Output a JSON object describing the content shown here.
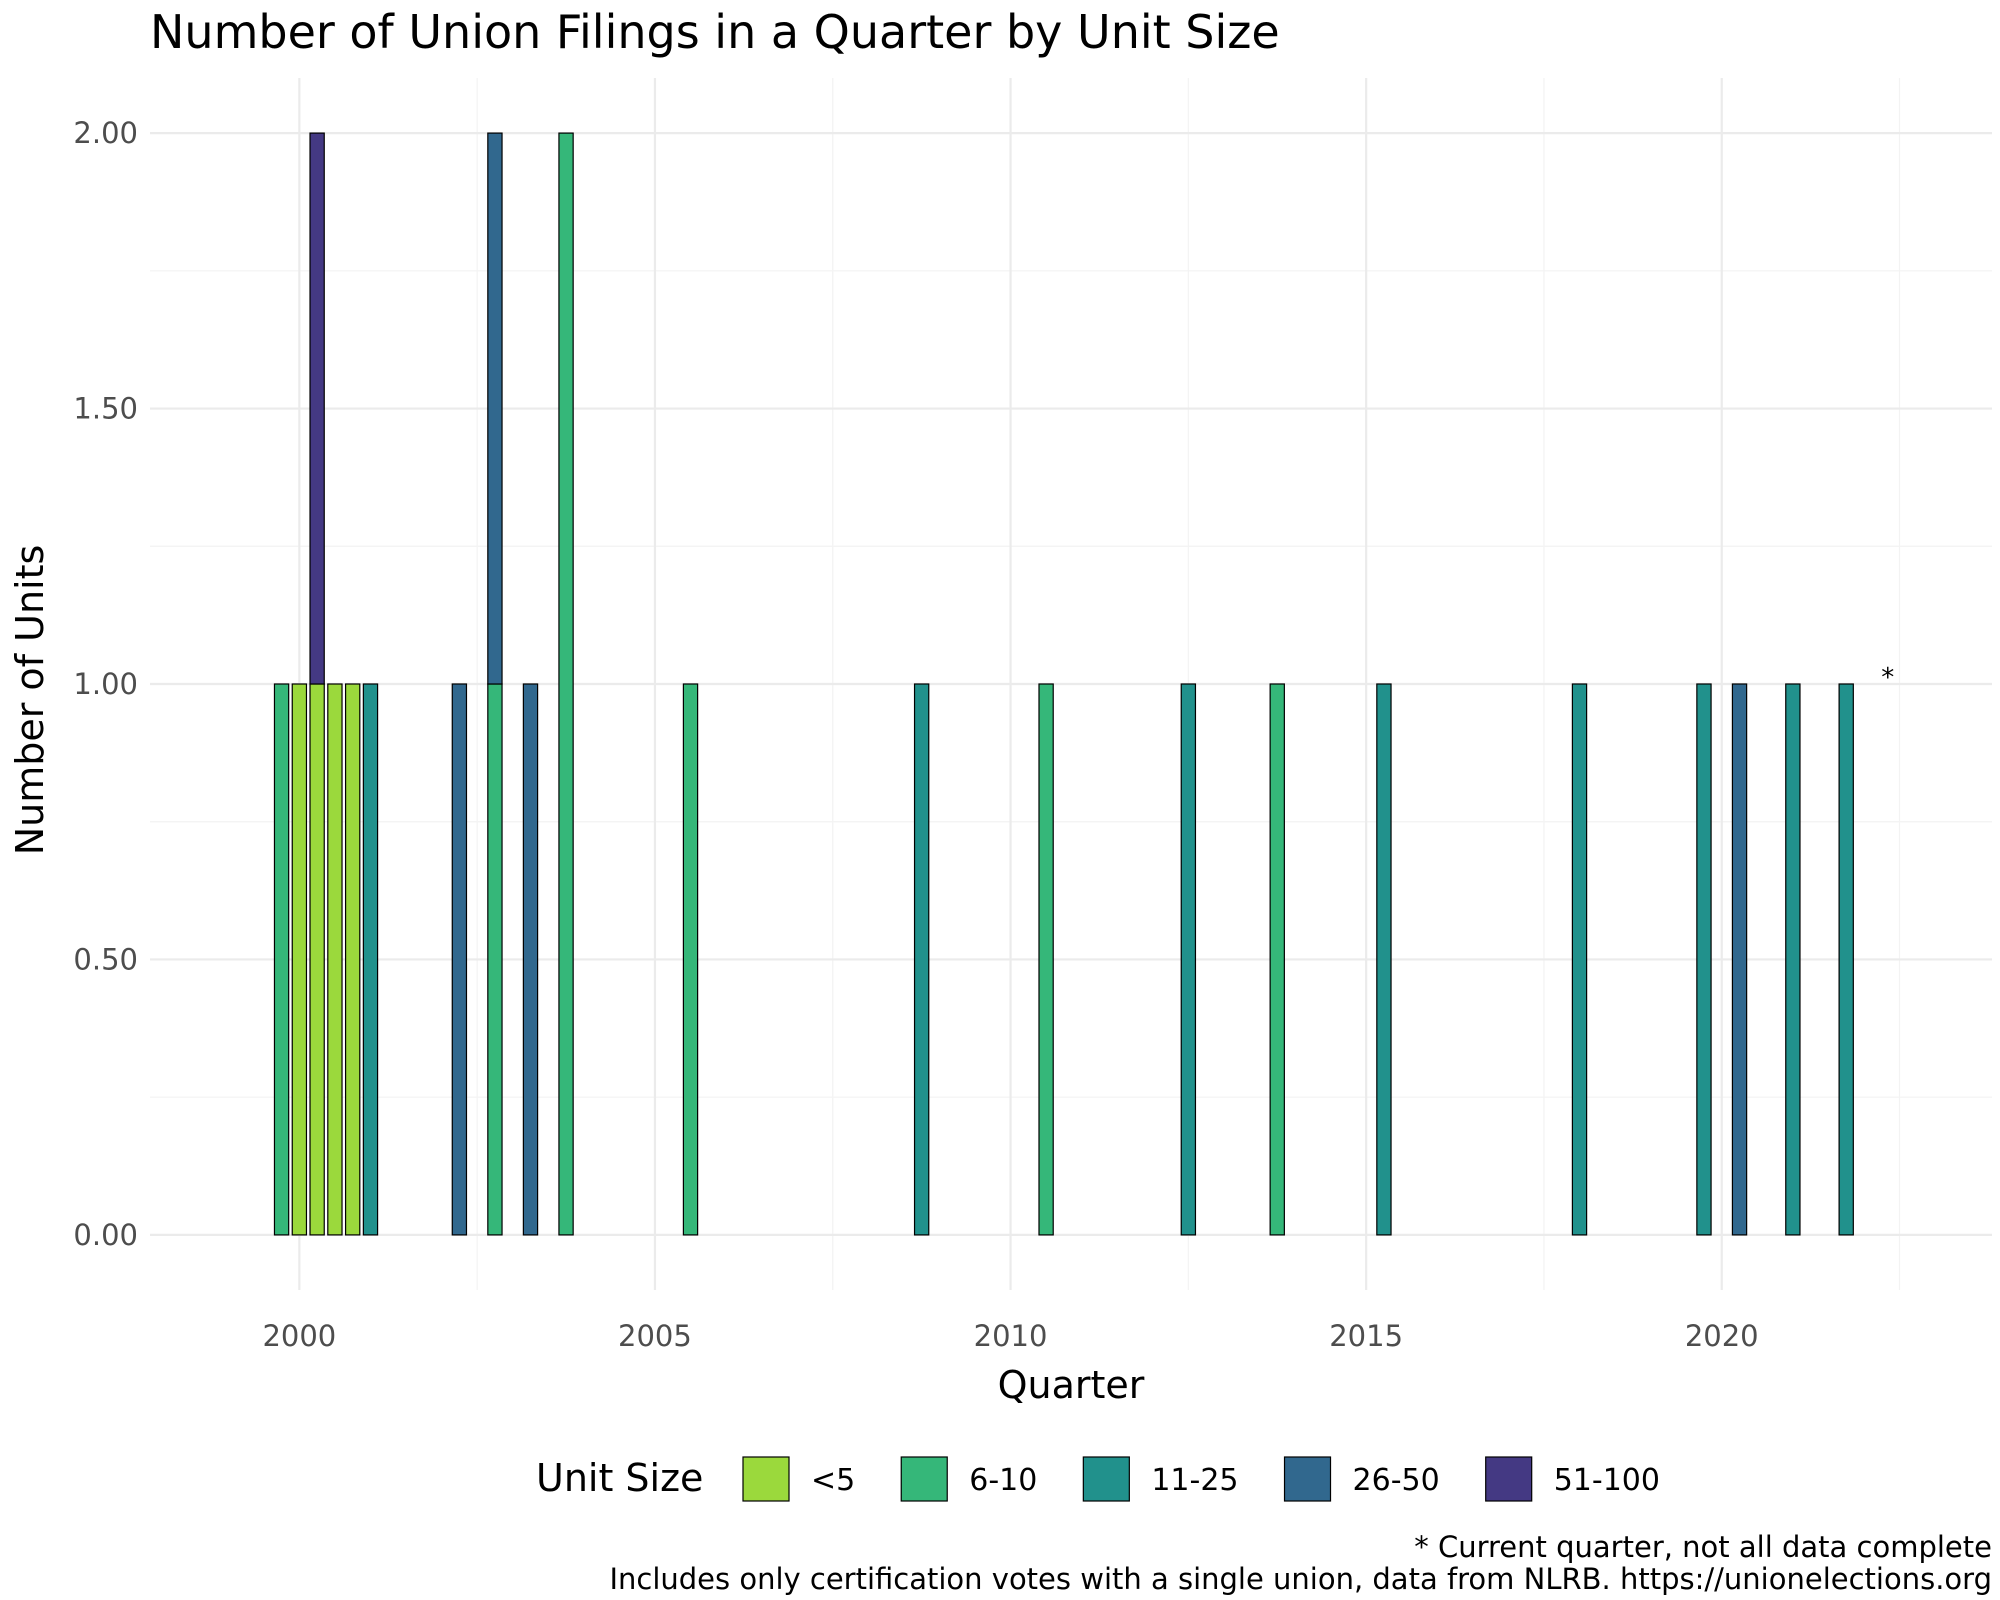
{
  "chart_data": {
    "type": "bar",
    "stacked": true,
    "title": "Number of Union Filings in a Quarter by Unit Size",
    "xlabel": "Quarter",
    "ylabel": "Number of Units",
    "xlim": [
      1997.9,
      2023.8
    ],
    "ylim": [
      -0.1,
      2.1
    ],
    "x_ticks": [
      "2000",
      "2005",
      "2010",
      "2015",
      "2020"
    ],
    "y_ticks": [
      "0.00",
      "0.50",
      "1.00",
      "1.50",
      "2.00"
    ],
    "grid": true,
    "legend": {
      "title": "Unit Size",
      "position": "bottom",
      "entries": [
        {
          "label": "<5",
          "color": "#9bd93c"
        },
        {
          "label": "6-10",
          "color": "#35b779"
        },
        {
          "label": "11-25",
          "color": "#21918c"
        },
        {
          "label": "26-50",
          "color": "#31688e"
        },
        {
          "label": "51-100",
          "color": "#443983"
        }
      ]
    },
    "quarters": [
      {
        "x": 1999.75,
        "segments": [
          {
            "size": "6-10",
            "value": 1
          }
        ]
      },
      {
        "x": 2000.0,
        "segments": [
          {
            "size": "<5",
            "value": 1
          }
        ]
      },
      {
        "x": 2000.25,
        "segments": [
          {
            "size": "<5",
            "value": 1
          },
          {
            "size": "51-100",
            "value": 1
          }
        ]
      },
      {
        "x": 2000.5,
        "segments": [
          {
            "size": "<5",
            "value": 1
          }
        ]
      },
      {
        "x": 2000.75,
        "segments": [
          {
            "size": "<5",
            "value": 1
          }
        ]
      },
      {
        "x": 2001.0,
        "segments": [
          {
            "size": "11-25",
            "value": 1
          }
        ]
      },
      {
        "x": 2002.25,
        "segments": [
          {
            "size": "26-50",
            "value": 1
          }
        ]
      },
      {
        "x": 2002.75,
        "segments": [
          {
            "size": "6-10",
            "value": 1
          },
          {
            "size": "26-50",
            "value": 1
          }
        ]
      },
      {
        "x": 2003.25,
        "segments": [
          {
            "size": "26-50",
            "value": 1
          }
        ]
      },
      {
        "x": 2003.75,
        "segments": [
          {
            "size": "6-10",
            "value": 2
          }
        ]
      },
      {
        "x": 2005.5,
        "segments": [
          {
            "size": "6-10",
            "value": 1
          }
        ]
      },
      {
        "x": 2008.75,
        "segments": [
          {
            "size": "11-25",
            "value": 1
          }
        ]
      },
      {
        "x": 2010.5,
        "segments": [
          {
            "size": "6-10",
            "value": 1
          }
        ]
      },
      {
        "x": 2012.5,
        "segments": [
          {
            "size": "11-25",
            "value": 1
          }
        ]
      },
      {
        "x": 2013.75,
        "segments": [
          {
            "size": "6-10",
            "value": 1
          }
        ]
      },
      {
        "x": 2015.25,
        "segments": [
          {
            "size": "11-25",
            "value": 1
          }
        ]
      },
      {
        "x": 2018.0,
        "segments": [
          {
            "size": "11-25",
            "value": 1
          }
        ]
      },
      {
        "x": 2019.75,
        "segments": [
          {
            "size": "11-25",
            "value": 1
          }
        ]
      },
      {
        "x": 2020.25,
        "segments": [
          {
            "size": "26-50",
            "value": 1
          }
        ]
      },
      {
        "x": 2021.0,
        "segments": [
          {
            "size": "11-25",
            "value": 1
          }
        ]
      },
      {
        "x": 2021.75,
        "segments": [
          {
            "size": "11-25",
            "value": 1
          }
        ]
      }
    ],
    "annotation": {
      "text": "*",
      "x": 2022.25,
      "y": 1.0
    },
    "caption_lines": [
      "* Current quarter, not all data complete",
      "Includes only certification votes with a single union, data from NLRB. https://unionelections.org"
    ]
  }
}
